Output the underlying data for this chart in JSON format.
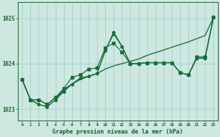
{
  "background_color": "#cce8e0",
  "grid_color": "#aacccc",
  "line_color": "#1a6b3c",
  "text_color": "#1a5c30",
  "xlabel": "Graphe pression niveau de la mer (hPa)",
  "xlim": [
    -0.5,
    23.5
  ],
  "ylim": [
    1022.75,
    1025.35
  ],
  "yticks": [
    1023,
    1024,
    1025
  ],
  "xticks": [
    0,
    1,
    2,
    3,
    4,
    5,
    6,
    7,
    8,
    9,
    10,
    11,
    12,
    13,
    14,
    15,
    16,
    17,
    18,
    19,
    20,
    21,
    22,
    23
  ],
  "series": [
    {
      "data": [
        1023.65,
        1023.2,
        1023.2,
        1023.1,
        1023.25,
        1023.42,
        1023.55,
        1023.65,
        1023.72,
        1023.78,
        1023.88,
        1023.95,
        1024.0,
        1024.05,
        1024.1,
        1024.18,
        1024.24,
        1024.3,
        1024.36,
        1024.42,
        1024.48,
        1024.55,
        1024.62,
        1025.02
      ],
      "marker": null,
      "lw": 1.0
    },
    {
      "data": [
        1023.65,
        1023.2,
        1023.2,
        1023.1,
        1023.25,
        1023.45,
        1023.7,
        1023.75,
        1023.88,
        1023.9,
        1024.35,
        1024.45,
        1024.25,
        1024.0,
        1024.0,
        1024.02,
        1024.02,
        1024.02,
        1024.02,
        1023.8,
        1023.75,
        1024.15,
        1024.15,
        1025.02
      ],
      "marker": "s",
      "lw": 0.9
    },
    {
      "data": [
        1023.65,
        1023.2,
        1023.1,
        1023.05,
        1023.2,
        1023.42,
        1023.55,
        1023.68,
        1023.72,
        1023.78,
        1024.3,
        1024.65,
        1024.38,
        1024.0,
        1024.0,
        1024.02,
        1024.02,
        1024.02,
        1024.02,
        1023.8,
        1023.75,
        1024.12,
        1024.12,
        1025.02
      ],
      "marker": "^",
      "lw": 0.9
    },
    {
      "data": [
        1023.65,
        1023.2,
        1023.1,
        1023.05,
        1023.2,
        1023.38,
        1023.55,
        1023.68,
        1023.72,
        1023.78,
        1024.28,
        1024.7,
        1024.38,
        1024.0,
        1024.0,
        1024.02,
        1024.02,
        1024.02,
        1024.02,
        1023.8,
        1023.75,
        1024.12,
        1024.12,
        1025.02
      ],
      "marker": "D",
      "lw": 0.9
    }
  ]
}
